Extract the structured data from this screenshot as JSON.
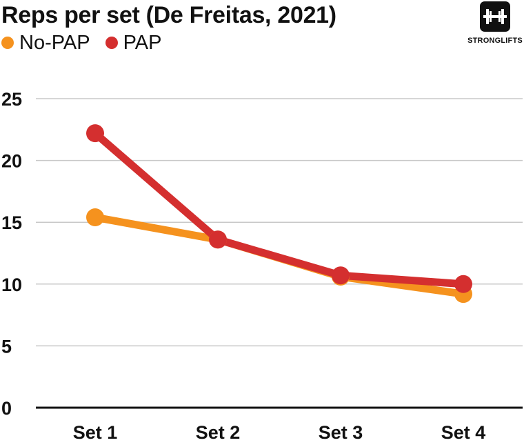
{
  "header": {
    "title": "Reps per set (De Freitas, 2021)"
  },
  "brand": {
    "name": "STRONGLIFTS",
    "icon": "barbell-logo-icon"
  },
  "colors": {
    "no_pap": "#f5921e",
    "pap": "#d42f2f",
    "grid": "#c8c8c8",
    "axis": "#111111"
  },
  "chart_data": {
    "type": "line",
    "title": "Reps per set (De Freitas, 2021)",
    "xlabel": "",
    "ylabel": "",
    "categories": [
      "Set 1",
      "Set 2",
      "Set 3",
      "Set 4"
    ],
    "yticks": [
      0,
      5,
      10,
      15,
      20,
      25
    ],
    "ylim": [
      0,
      25
    ],
    "grid": true,
    "legend_position": "top-left",
    "series": [
      {
        "name": "No-PAP",
        "color": "#f5921e",
        "values": [
          15.4,
          13.6,
          10.6,
          9.2
        ]
      },
      {
        "name": "PAP",
        "color": "#d42f2f",
        "values": [
          22.2,
          13.6,
          10.7,
          10.0
        ]
      }
    ]
  }
}
